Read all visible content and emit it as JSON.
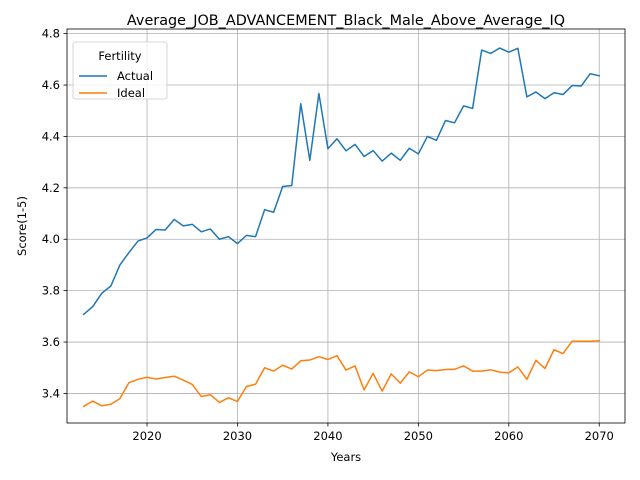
{
  "chart_data": {
    "type": "line",
    "title": "Average_JOB_ADVANCEMENT_Black_Male_Above_Average_IQ",
    "xlabel": "Years",
    "ylabel": "Score(1-5)",
    "xlim": [
      2011.15,
      2072.85
    ],
    "ylim": [
      3.285,
      4.818
    ],
    "xticks": [
      2020,
      2030,
      2040,
      2050,
      2060,
      2070
    ],
    "yticks": [
      3.4,
      3.6,
      3.8,
      4.0,
      4.2,
      4.4,
      4.6,
      4.8
    ],
    "xtick_labels": [
      "2020",
      "2030",
      "2040",
      "2050",
      "2060",
      "2070"
    ],
    "ytick_labels": [
      "3.4",
      "3.6",
      "3.8",
      "4.0",
      "4.2",
      "4.4",
      "4.6",
      "4.8"
    ],
    "grid": true,
    "legend": {
      "title": "Fertility",
      "position": "upper left"
    },
    "x": [
      2013,
      2014,
      2015,
      2016,
      2017,
      2018,
      2019,
      2020,
      2021,
      2022,
      2023,
      2024,
      2025,
      2026,
      2027,
      2028,
      2029,
      2030,
      2031,
      2032,
      2033,
      2034,
      2035,
      2036,
      2037,
      2038,
      2039,
      2040,
      2041,
      2042,
      2043,
      2044,
      2045,
      2046,
      2047,
      2048,
      2049,
      2050,
      2051,
      2052,
      2053,
      2054,
      2055,
      2056,
      2057,
      2058,
      2059,
      2060,
      2061,
      2062,
      2063,
      2064,
      2065,
      2066,
      2067,
      2068,
      2069,
      2070
    ],
    "series": [
      {
        "name": "Actual",
        "color": "#1f77b4",
        "values": [
          3.708,
          3.738,
          3.79,
          3.818,
          3.9,
          3.948,
          3.993,
          4.005,
          4.038,
          4.036,
          4.077,
          4.052,
          4.058,
          4.029,
          4.04,
          4.0,
          4.01,
          3.983,
          4.015,
          4.01,
          4.115,
          4.105,
          4.205,
          4.209,
          4.527,
          4.307,
          4.567,
          4.352,
          4.391,
          4.344,
          4.369,
          4.322,
          4.345,
          4.304,
          4.335,
          4.307,
          4.354,
          4.332,
          4.4,
          4.385,
          4.462,
          4.453,
          4.519,
          4.509,
          4.736,
          4.723,
          4.744,
          4.728,
          4.743,
          4.554,
          4.573,
          4.547,
          4.57,
          4.563,
          4.598,
          4.596,
          4.644,
          4.636
        ]
      },
      {
        "name": "Ideal",
        "color": "#ff7f0e",
        "values": [
          3.35,
          3.37,
          3.352,
          3.358,
          3.38,
          3.442,
          3.455,
          3.463,
          3.456,
          3.462,
          3.467,
          3.452,
          3.435,
          3.388,
          3.395,
          3.365,
          3.383,
          3.369,
          3.427,
          3.436,
          3.5,
          3.487,
          3.51,
          3.495,
          3.527,
          3.53,
          3.543,
          3.532,
          3.547,
          3.491,
          3.507,
          3.414,
          3.478,
          3.409,
          3.476,
          3.44,
          3.484,
          3.465,
          3.491,
          3.489,
          3.493,
          3.494,
          3.507,
          3.487,
          3.487,
          3.492,
          3.483,
          3.48,
          3.503,
          3.455,
          3.529,
          3.497,
          3.57,
          3.555,
          3.603,
          3.603,
          3.603,
          3.605
        ]
      }
    ]
  }
}
